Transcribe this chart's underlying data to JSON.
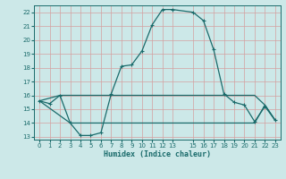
{
  "xlabel": "Humidex (Indice chaleur)",
  "xlim": [
    -0.5,
    23.5
  ],
  "ylim": [
    12.8,
    22.5
  ],
  "yticks": [
    13,
    14,
    15,
    16,
    17,
    18,
    19,
    20,
    21,
    22
  ],
  "xticks": [
    0,
    1,
    2,
    3,
    4,
    5,
    6,
    7,
    8,
    9,
    10,
    11,
    12,
    13,
    15,
    16,
    17,
    18,
    19,
    20,
    21,
    22,
    23
  ],
  "bg_color": "#cce8e8",
  "grid_color": "#c8d8d8",
  "line_color": "#1a6b6b",
  "line1_x": [
    0,
    1,
    2,
    3,
    4,
    5,
    6,
    7,
    8,
    9,
    10,
    11,
    12,
    13,
    15,
    16,
    17,
    18,
    19,
    20,
    21,
    22,
    23
  ],
  "line1_y": [
    15.6,
    15.4,
    16.0,
    14.0,
    13.1,
    13.1,
    13.3,
    16.1,
    18.1,
    18.2,
    19.2,
    21.1,
    22.2,
    22.2,
    22.0,
    21.4,
    19.3,
    16.1,
    15.5,
    15.3,
    14.1,
    15.2,
    14.2
  ],
  "line2_x": [
    0,
    2,
    6,
    7,
    13,
    15,
    16,
    21,
    22,
    23
  ],
  "line2_y": [
    15.6,
    16.0,
    16.0,
    16.0,
    16.0,
    16.0,
    16.0,
    16.0,
    15.3,
    14.2
  ],
  "line3_x": [
    0,
    3,
    6,
    7,
    13,
    15,
    16,
    21,
    22,
    23
  ],
  "line3_y": [
    15.6,
    14.0,
    14.0,
    14.0,
    14.0,
    14.0,
    14.0,
    14.0,
    15.3,
    14.2
  ],
  "markersize": 3,
  "linewidth": 0.9
}
